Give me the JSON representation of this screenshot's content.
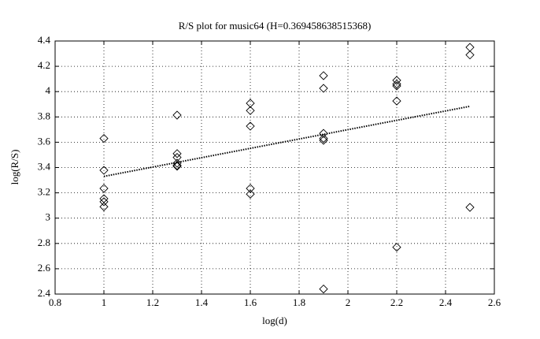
{
  "chart_data": {
    "type": "scatter",
    "title": "R/S plot for music64 (H=0.369458638515368)",
    "xlabel": "log(d)",
    "ylabel": "log(R/S)",
    "xlim": [
      0.8,
      2.6
    ],
    "xticks": [
      0.8,
      1,
      1.2,
      1.4,
      1.6,
      1.8,
      2,
      2.2,
      2.4,
      2.6
    ],
    "ylim": [
      2.4,
      4.4
    ],
    "yticks": [
      2.4,
      2.6,
      2.8,
      3,
      3.2,
      3.4,
      3.6,
      3.8,
      4,
      4.2,
      4.4
    ],
    "grid": true,
    "color": "#000000",
    "points": {
      "x": [
        1,
        1,
        1,
        1,
        1,
        1,
        1.3,
        1.3,
        1.3,
        1.3,
        1.3,
        1.3,
        1.6,
        1.6,
        1.6,
        1.6,
        1.6,
        1.9,
        1.9,
        1.9,
        1.9,
        1.9,
        1.9,
        2.2,
        2.2,
        2.2,
        2.2,
        2.2,
        2.5,
        2.5,
        2.5
      ],
      "values": [
        3.63,
        3.378,
        3.235,
        3.154,
        3.13,
        3.09,
        3.814,
        3.51,
        3.48,
        3.434,
        3.416,
        3.41,
        3.908,
        3.85,
        3.727,
        3.235,
        3.19,
        4.126,
        4.026,
        3.67,
        3.63,
        3.615,
        2.44,
        4.089,
        4.06,
        4.045,
        3.926,
        2.77,
        4.35,
        4.29,
        3.085
      ]
    },
    "fit_line": {
      "x": [
        1,
        2.5
      ],
      "values": [
        3.33,
        3.884
      ]
    }
  }
}
